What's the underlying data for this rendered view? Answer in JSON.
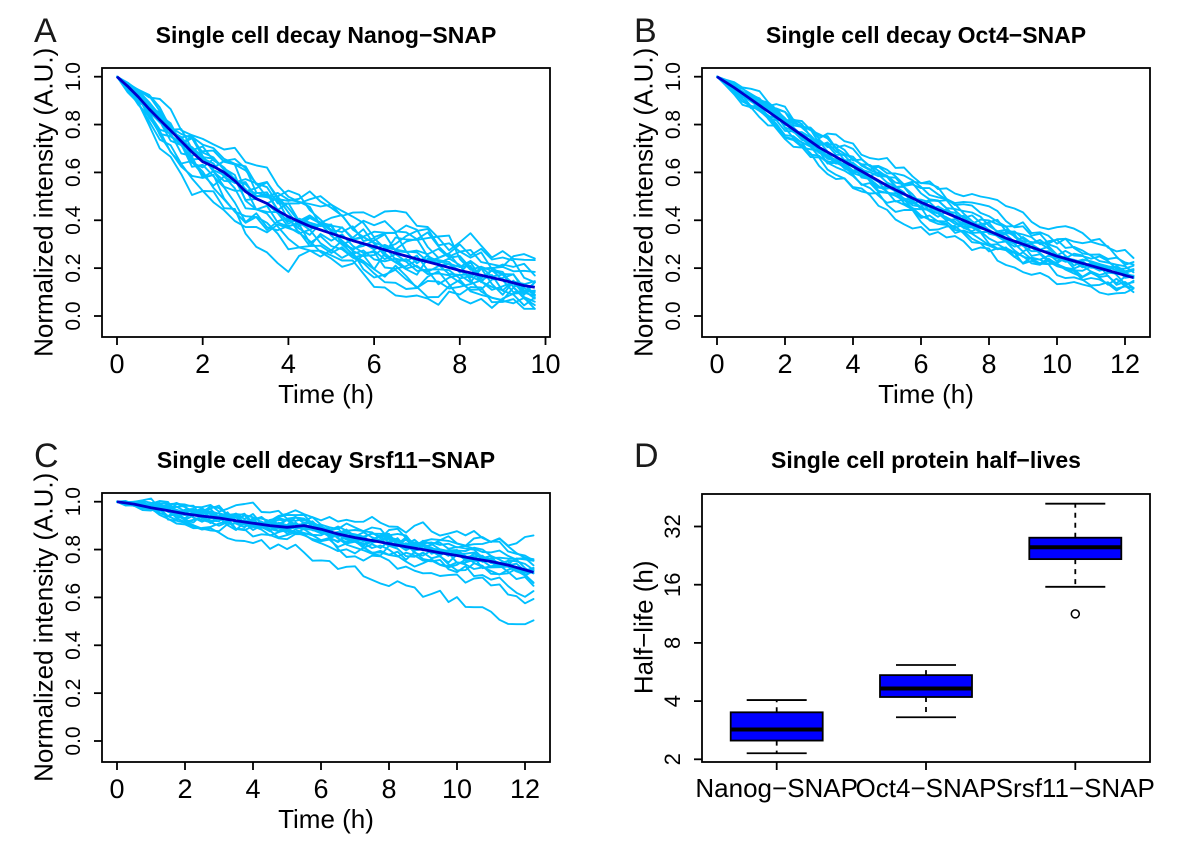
{
  "chart_data": [
    {
      "panel_letter": "A",
      "type": "line",
      "title": "Single cell decay Nanog−SNAP",
      "xlabel": "Time (h)",
      "ylabel": "Normalized intensity (A.U.)",
      "xticks": [
        0,
        2,
        4,
        6,
        8,
        10
      ],
      "ytick_labels": [
        "0.0",
        "0.2",
        "0.4",
        "0.6",
        "0.8",
        "1.0"
      ],
      "xlim": [
        0,
        10
      ],
      "ylim": [
        0,
        1
      ],
      "grid": false,
      "colors": {
        "trace": "#00BFFF",
        "mean": "#0000CD"
      },
      "mean_series": {
        "name": "mean-decay",
        "x": [
          0,
          0.25,
          0.5,
          0.75,
          1,
          1.25,
          1.5,
          1.75,
          2,
          2.25,
          2.5,
          2.75,
          3,
          3.25,
          3.5,
          3.75,
          4,
          4.5,
          5,
          5.5,
          6,
          6.5,
          7,
          7.5,
          8,
          8.5,
          9,
          9.5,
          9.75
        ],
        "y": [
          1.0,
          0.96,
          0.915,
          0.865,
          0.82,
          0.775,
          0.73,
          0.685,
          0.645,
          0.625,
          0.6,
          0.565,
          0.52,
          0.49,
          0.47,
          0.44,
          0.415,
          0.375,
          0.345,
          0.315,
          0.29,
          0.263,
          0.238,
          0.215,
          0.19,
          0.17,
          0.15,
          0.127,
          0.12
        ]
      },
      "traces": {
        "rate_factors": [
          0.7,
          0.76,
          0.82,
          0.87,
          0.92,
          0.96,
          1.0,
          1.04,
          1.08,
          1.13,
          1.19,
          1.26,
          1.34,
          1.45,
          0.9,
          1.02,
          0.98,
          1.1,
          0.85
        ],
        "noise": 0.05,
        "dt": 0.25,
        "t_end": 9.75,
        "seed": 11
      }
    },
    {
      "panel_letter": "B",
      "type": "line",
      "title": "Single cell decay Oct4−SNAP",
      "xlabel": "Time (h)",
      "ylabel": "Normalized intensity (A.U.)",
      "xticks": [
        0,
        2,
        4,
        6,
        8,
        10,
        12
      ],
      "ytick_labels": [
        "0.0",
        "0.2",
        "0.4",
        "0.6",
        "0.8",
        "1.0"
      ],
      "xlim": [
        0,
        12.25
      ],
      "ylim": [
        0,
        1
      ],
      "grid": false,
      "colors": {
        "trace": "#00BFFF",
        "mean": "#0000CD"
      },
      "mean_series": {
        "name": "mean-decay",
        "x": [
          0,
          0.5,
          1,
          1.5,
          2,
          2.5,
          3,
          3.5,
          4,
          4.5,
          5,
          5.5,
          6,
          6.5,
          7,
          7.5,
          8,
          8.5,
          9,
          9.5,
          10,
          10.5,
          11,
          11.5,
          12,
          12.25
        ],
        "y": [
          1.0,
          0.955,
          0.905,
          0.855,
          0.805,
          0.755,
          0.705,
          0.665,
          0.625,
          0.585,
          0.545,
          0.51,
          0.475,
          0.445,
          0.415,
          0.385,
          0.355,
          0.325,
          0.3,
          0.275,
          0.25,
          0.23,
          0.21,
          0.19,
          0.17,
          0.16
        ]
      },
      "traces": {
        "rate_factors": [
          0.75,
          0.82,
          0.88,
          0.93,
          0.97,
          1.0,
          1.03,
          1.07,
          1.11,
          1.16,
          1.22,
          1.32,
          0.9,
          1.05,
          0.95,
          1.14,
          0.85,
          1.01
        ],
        "noise": 0.025,
        "dt": 0.25,
        "t_end": 12.25,
        "seed": 23
      }
    },
    {
      "panel_letter": "C",
      "type": "line",
      "title": "Single cell decay Srsf11−SNAP",
      "xlabel": "Time (h)",
      "ylabel": "Normalized intensity (A.U.)",
      "xticks": [
        0,
        2,
        4,
        6,
        8,
        10,
        12
      ],
      "ytick_labels": [
        "0.0",
        "0.2",
        "0.4",
        "0.6",
        "0.8",
        "1.0"
      ],
      "xlim": [
        0,
        12.25
      ],
      "ylim": [
        0,
        1
      ],
      "grid": false,
      "colors": {
        "trace": "#00BFFF",
        "mean": "#0000CD"
      },
      "mean_series": {
        "name": "mean-decay",
        "x": [
          0,
          0.5,
          1,
          1.5,
          2,
          2.5,
          3,
          3.5,
          4,
          4.5,
          5,
          5.5,
          6,
          6.5,
          7,
          7.5,
          8,
          8.5,
          9,
          9.5,
          10,
          10.5,
          11,
          11.5,
          12,
          12.25
        ],
        "y": [
          1.0,
          0.99,
          0.975,
          0.963,
          0.95,
          0.94,
          0.932,
          0.92,
          0.91,
          0.9,
          0.893,
          0.9,
          0.885,
          0.865,
          0.85,
          0.838,
          0.825,
          0.812,
          0.8,
          0.787,
          0.775,
          0.762,
          0.75,
          0.735,
          0.715,
          0.705
        ]
      },
      "traces": {
        "rate_factors": [
          0.55,
          0.68,
          0.78,
          0.85,
          0.9,
          0.94,
          0.97,
          1.0,
          1.03,
          1.07,
          1.12,
          1.2,
          1.3,
          1.5,
          2.1,
          0.88,
          0.95,
          1.05,
          1.15
        ],
        "noise": 0.028,
        "dt": 0.25,
        "t_end": 12.25,
        "seed": 37
      }
    },
    {
      "panel_letter": "D",
      "type": "boxplot",
      "title": "Single cell protein half−lives",
      "xlabel": "",
      "ylabel": "Half−life (h)",
      "yticks": [
        2,
        4,
        8,
        16,
        32
      ],
      "log2_scale": true,
      "grid": false,
      "categories": [
        "Nanog−SNAP",
        "Oct4−SNAP",
        "Srsf11−SNAP"
      ],
      "boxes": [
        {
          "label": "Nanog−SNAP",
          "low": 2.15,
          "q1": 2.5,
          "median": 2.85,
          "q3": 3.5,
          "high": 4.05,
          "outliers": []
        },
        {
          "label": "Oct4−SNAP",
          "low": 3.3,
          "q1": 4.2,
          "median": 4.65,
          "q3": 5.45,
          "high": 6.15,
          "outliers": []
        },
        {
          "label": "Srsf11−SNAP",
          "low": 15.6,
          "q1": 21.7,
          "median": 25.0,
          "q3": 28.0,
          "high": 42.0,
          "outliers": [
            11.3
          ]
        }
      ],
      "colors": {
        "box_fill": "#0000FF",
        "border": "#000000",
        "whisker": "#000000"
      }
    }
  ]
}
